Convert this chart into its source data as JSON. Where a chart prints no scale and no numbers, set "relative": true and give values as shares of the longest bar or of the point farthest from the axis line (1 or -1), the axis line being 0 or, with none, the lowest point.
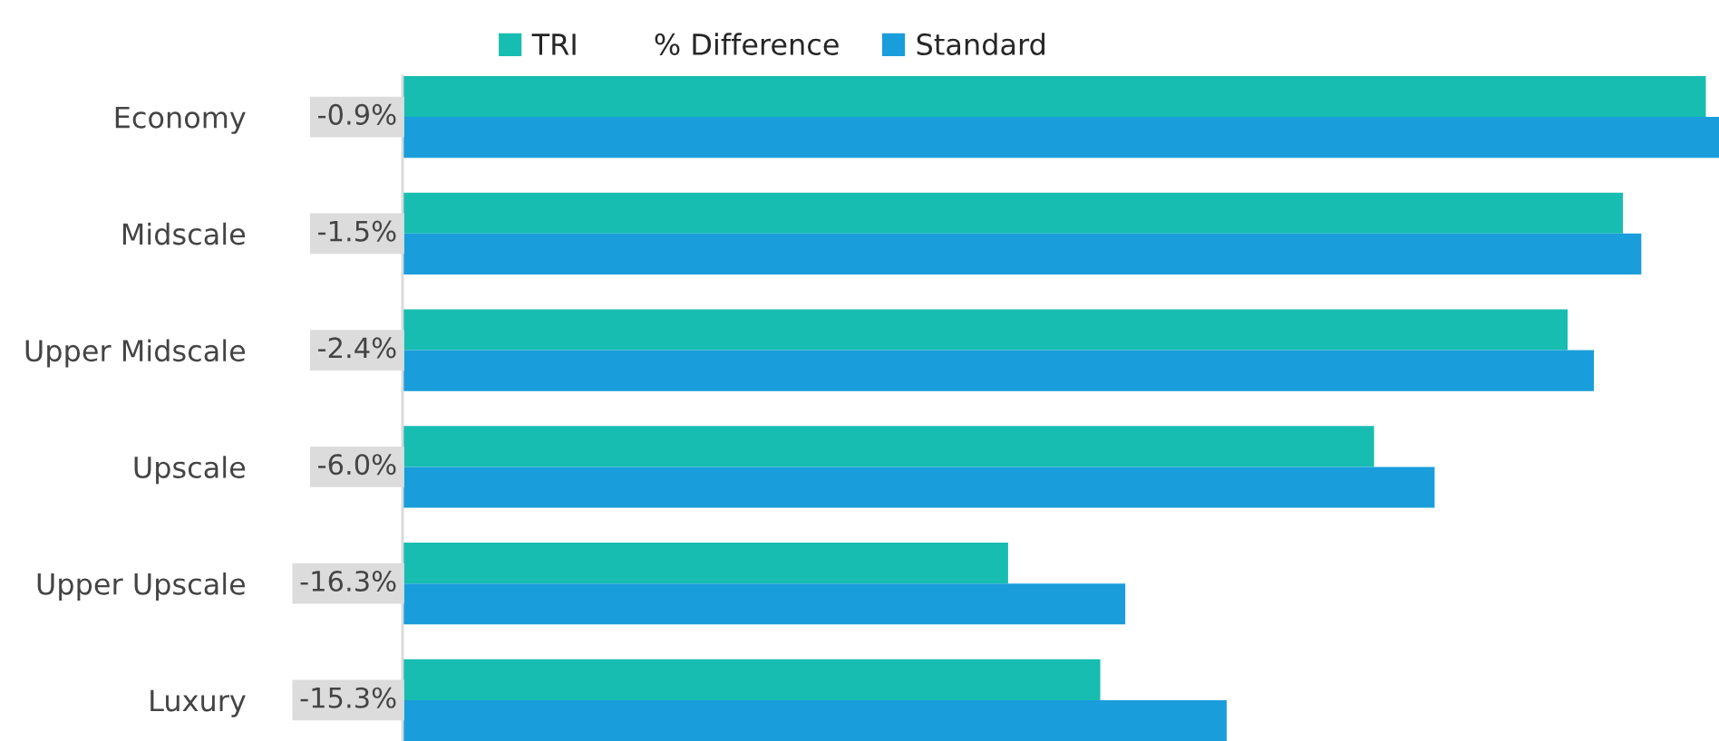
{
  "chart_data": {
    "type": "bar",
    "orientation": "horizontal",
    "relative": true,
    "legend": "top",
    "categories": [
      "Economy",
      "Midscale",
      "Upper Midscale",
      "Upscale",
      "Upper Upscale",
      "Luxury"
    ],
    "series": [
      {
        "name": "TRI",
        "color": "#17bdb0",
        "values": [
          0.99,
          0.927,
          0.885,
          0.738,
          0.46,
          0.53
        ]
      },
      {
        "name": "% Difference",
        "type": "line",
        "values": [
          null,
          null,
          null,
          null,
          null,
          null
        ]
      },
      {
        "name": "Standard",
        "color": "#1a9ddb",
        "values": [
          1.0,
          0.941,
          0.905,
          0.784,
          0.549,
          0.626
        ]
      }
    ],
    "annotations": [
      "-0.9%",
      "-1.5%",
      "-2.4%",
      "-6.0%",
      "-16.3%",
      "-15.3%"
    ]
  }
}
